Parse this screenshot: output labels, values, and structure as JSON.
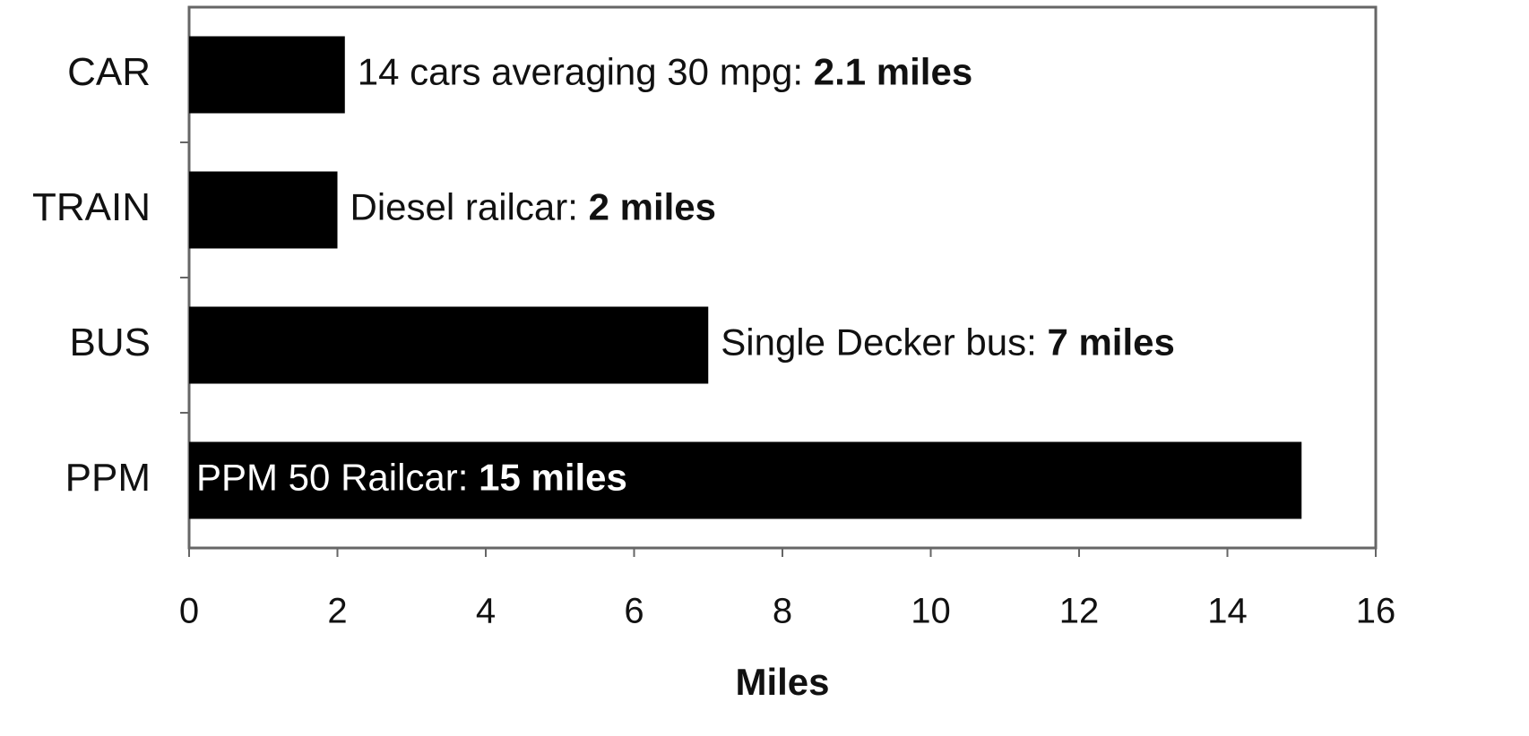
{
  "chart_data": {
    "type": "barh",
    "categories": [
      "CAR",
      "TRAIN",
      "BUS",
      "PPM"
    ],
    "values": [
      2.1,
      2,
      7,
      15
    ],
    "value_labels": [
      "2.1 miles",
      "2 miles",
      "7 miles",
      "15 miles"
    ],
    "annotations": [
      "14 cars averaging 30 mpg: ",
      "Diesel railcar: ",
      "Single Decker bus: ",
      "PPM 50 Railcar: "
    ],
    "color": "#000000",
    "xlabel": "Miles",
    "xlim": [
      0,
      16
    ],
    "xticks": [
      0,
      2,
      4,
      6,
      8,
      10,
      12,
      14,
      16
    ]
  }
}
